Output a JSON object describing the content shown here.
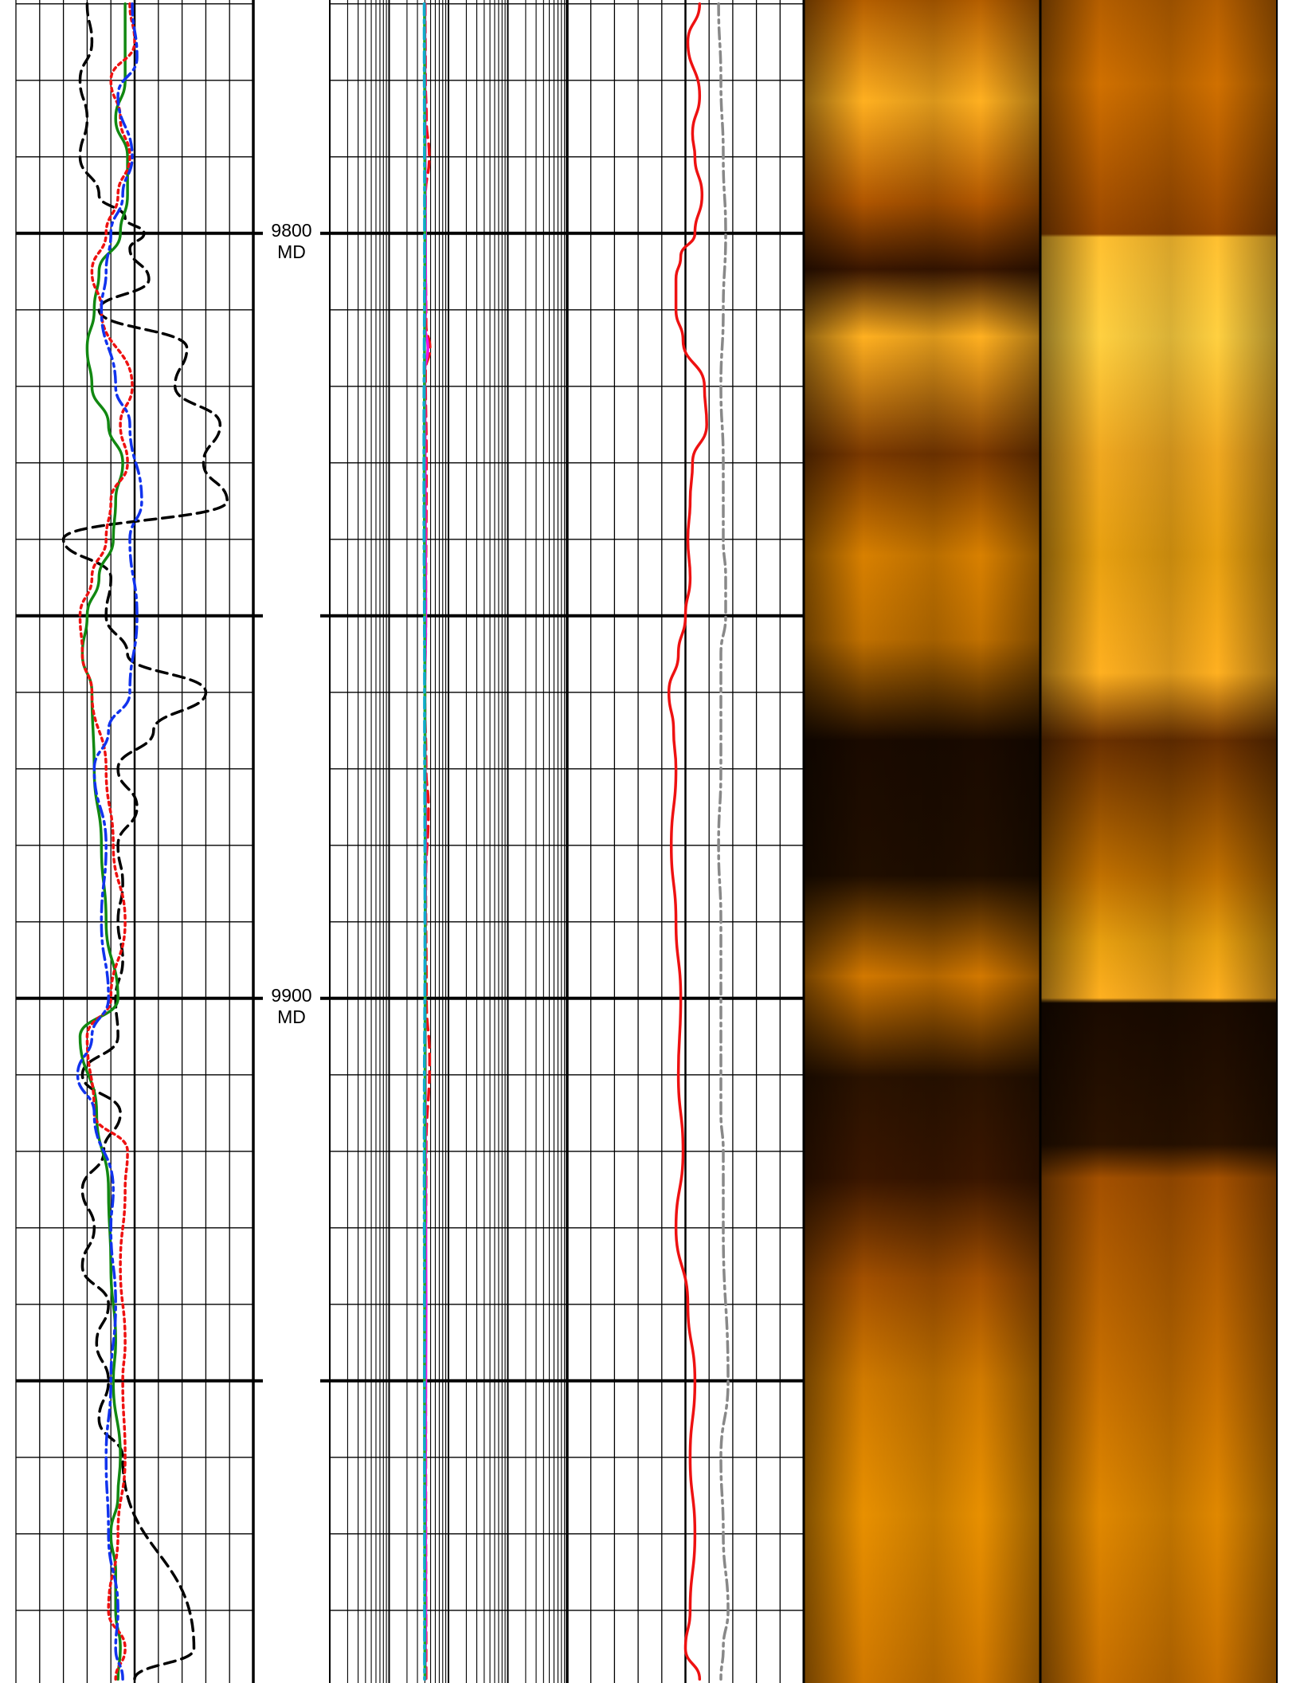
{
  "depth_track": {
    "labels": [
      {
        "depth": 9800,
        "line1": "9800",
        "line2": "MD"
      },
      {
        "depth": 9900,
        "line1": "9900",
        "line2": "MD"
      }
    ]
  },
  "chart_data": {
    "type": "line",
    "title": "",
    "y_axis": {
      "quantity": "MD",
      "range": [
        9769.5,
        9989.5
      ],
      "inverted": true,
      "major_step": 50,
      "minor_step": 10
    },
    "tracks": [
      {
        "name": "track-1",
        "scale": "linear",
        "x_range": [
          0,
          10
        ],
        "grid": true,
        "series": [
          {
            "id": "black-dashed",
            "color": "#000000",
            "dash": "dashed",
            "x": [
              3.0,
              3.2,
              2.7,
              3.0,
              2.7,
              3.5,
              4.6,
              5.4,
              4.8,
              5.6,
              3.5,
              7.2,
              6.7,
              8.6,
              7.9,
              8.9,
              2.0,
              4.0,
              3.8,
              4.7,
              8.0,
              5.8,
              4.3,
              5.1,
              4.3,
              4.5,
              4.3,
              4.5,
              4.2,
              4.3,
              2.8,
              4.4,
              3.7,
              2.8,
              3.3,
              2.8,
              3.9,
              3.4,
              3.9,
              3.5,
              4.5,
              7.5,
              5.0
            ],
            "depth": [
              9770,
              9775,
              9780,
              9785,
              9790,
              9795,
              9798,
              9800,
              9802,
              9806,
              9810,
              9815,
              9820,
              9825,
              9830,
              9835,
              9840,
              9845,
              9850,
              9855,
              9860,
              9865,
              9870,
              9875,
              9880,
              9885,
              9890,
              9895,
              9900,
              9905,
              9910,
              9915,
              9920,
              9925,
              9930,
              9935,
              9940,
              9945,
              9950,
              9955,
              9960,
              9985,
              9989
            ]
          },
          {
            "id": "green-solid",
            "color": "#118811",
            "dash": "solid",
            "x": [
              4.6,
              4.6,
              4.2,
              4.7,
              4.7,
              4.4,
              3.5,
              3.3,
              3.0,
              3.2,
              3.9,
              4.5,
              4.2,
              4.1,
              3.5,
              3.0,
              2.8,
              3.2,
              3.3,
              3.6,
              3.8,
              4.3,
              2.7,
              3.4,
              3.9,
              4.0,
              4.2,
              4.1,
              4.4,
              4.3,
              4.0,
              4.2,
              4.2,
              4.4,
              4.3
            ],
            "depth": [
              9770,
              9780,
              9785,
              9790,
              9795,
              9800,
              9805,
              9810,
              9815,
              9820,
              9825,
              9830,
              9835,
              9840,
              9845,
              9850,
              9855,
              9860,
              9870,
              9880,
              9890,
              9900,
              9905,
              9915,
              9925,
              9935,
              9945,
              9950,
              9960,
              9965,
              9970,
              9975,
              9980,
              9985,
              9989
            ]
          },
          {
            "id": "red-dotted",
            "color": "#ee1111",
            "dash": "dotted",
            "x": [
              4.8,
              5.0,
              4.0,
              4.4,
              4.8,
              4.3,
              3.8,
              3.2,
              3.6,
              4.9,
              4.4,
              4.7,
              4.0,
              3.8,
              3.2,
              2.7,
              2.8,
              3.2,
              3.8,
              4.1,
              4.6,
              4.0,
              3.0,
              3.3,
              4.7,
              4.6,
              4.4,
              4.6,
              4.5,
              4.6,
              4.3,
              3.9,
              4.6,
              4.2
            ],
            "depth": [
              9770,
              9775,
              9780,
              9785,
              9790,
              9795,
              9800,
              9805,
              9810,
              9820,
              9825,
              9830,
              9835,
              9840,
              9845,
              9850,
              9855,
              9860,
              9870,
              9880,
              9890,
              9900,
              9905,
              9915,
              9920,
              9925,
              9935,
              9945,
              9950,
              9960,
              9970,
              9980,
              9985,
              9989
            ]
          },
          {
            "id": "blue-dashdot",
            "color": "#1133ee",
            "dash": "dashdot",
            "x": [
              4.9,
              5.1,
              4.3,
              4.9,
              4.5,
              4.0,
              3.8,
              3.6,
              4.2,
              4.8,
              5.3,
              4.8,
              5.1,
              4.8,
              3.9,
              3.3,
              3.8,
              3.6,
              3.9,
              3.2,
              2.6,
              3.3,
              4.1,
              4.0,
              4.2,
              4.0,
              3.8,
              3.9,
              4.3,
              4.2,
              4.5
            ],
            "depth": [
              9770,
              9777,
              9782,
              9790,
              9795,
              9800,
              9805,
              9810,
              9820,
              9825,
              9835,
              9840,
              9850,
              9860,
              9865,
              9870,
              9880,
              9890,
              9900,
              9905,
              9910,
              9915,
              9925,
              9930,
              9940,
              9950,
              9960,
              9970,
              9980,
              9985,
              9989
            ]
          }
        ]
      },
      {
        "name": "track-2",
        "scale": "log",
        "x_range": [
          0.2,
          2000
        ],
        "grid": true,
        "series": [
          {
            "id": "red-dashed",
            "color": "#ee1111",
            "dash": "dashed",
            "x": [
              8.1,
              8.2,
              8.5,
              9.5,
              8.2,
              8.1,
              8.4,
              9.8,
              8.2,
              8.5,
              8.3,
              8.0,
              8.4,
              9.2,
              8.3,
              8.5,
              9.6,
              8.4,
              8.2,
              8.3,
              8.4
            ],
            "depth": [
              9770,
              9780,
              9785,
              9790,
              9795,
              9800,
              9812,
              9815,
              9818,
              9830,
              9850,
              9860,
              9870,
              9875,
              9885,
              9900,
              9908,
              9920,
              9940,
              9960,
              9989
            ]
          },
          {
            "id": "magenta-solid",
            "color": "#ee11ee",
            "dash": "solid",
            "x": [
              8.0,
              8.1,
              8.3,
              8.0,
              9.0,
              8.0,
              8.3,
              8.0,
              8.3,
              8.1,
              8.2,
              8.4,
              8.2,
              8.3,
              8.1
            ],
            "depth": [
              9770,
              9790,
              9810,
              9812,
              9815,
              9818,
              9850,
              9860,
              9880,
              9900,
              9920,
              9940,
              9960,
              9980,
              9989
            ]
          },
          {
            "id": "green-solid",
            "color": "#22aa22",
            "dash": "solid",
            "x": [
              7.9,
              8.0,
              7.8,
              8.0,
              8.1,
              8.0,
              7.9,
              8.0
            ],
            "depth": [
              9770,
              9800,
              9830,
              9860,
              9890,
              9920,
              9950,
              9989
            ]
          },
          {
            "id": "cyan-dashdot",
            "color": "#11aacc",
            "dash": "dashdot",
            "x": [
              7.8,
              7.9,
              7.7,
              7.9,
              8.0,
              7.8,
              7.9,
              7.9
            ],
            "depth": [
              9770,
              9800,
              9830,
              9860,
              9890,
              9920,
              9950,
              9989
            ]
          }
        ]
      },
      {
        "name": "track-3",
        "scale": "linear",
        "x_range": [
          0,
          10
        ],
        "grid": true,
        "series": [
          {
            "id": "red-solid",
            "color": "#ee1111",
            "dash": "solid",
            "x": [
              5.6,
              5.1,
              5.6,
              5.3,
              5.4,
              5.7,
              5.4,
              4.8,
              4.6,
              4.6,
              4.9,
              5.8,
              5.9,
              5.3,
              5.2,
              5.1,
              5.2,
              5.0,
              4.7,
              4.3,
              4.5,
              4.6,
              4.4,
              4.6,
              4.8,
              4.7,
              4.9,
              4.6,
              5.1,
              5.4,
              5.2,
              5.4,
              5.2,
              5.0,
              5.6
            ],
            "depth": [
              9770,
              9775,
              9782,
              9787,
              9790,
              9795,
              9800,
              9803,
              9806,
              9810,
              9814,
              9820,
              9825,
              9830,
              9835,
              9840,
              9845,
              9850,
              9855,
              9860,
              9865,
              9870,
              9880,
              9890,
              9900,
              9910,
              9920,
              9930,
              9940,
              9950,
              9960,
              9970,
              9980,
              9985,
              9989
            ]
          },
          {
            "id": "grey-dashdot",
            "color": "#888888",
            "dash": "dashdot",
            "x": [
              6.4,
              6.5,
              6.6,
              6.7,
              6.6,
              6.5,
              6.6,
              6.6,
              6.7,
              6.7,
              6.5,
              6.5,
              6.4,
              6.5,
              6.5,
              6.5,
              6.6,
              6.6,
              6.8,
              6.5,
              6.6,
              6.8,
              6.6,
              6.5
            ],
            "depth": [
              9770,
              9780,
              9790,
              9800,
              9810,
              9820,
              9830,
              9840,
              9845,
              9850,
              9855,
              9870,
              9880,
              9890,
              9900,
              9915,
              9920,
              9930,
              9950,
              9960,
              9970,
              9980,
              9985,
              9989
            ]
          }
        ]
      },
      {
        "name": "image-track-1",
        "type": "heatmap",
        "palette": [
          "#140800",
          "#7a3600",
          "#c86a00",
          "#ffc030"
        ]
      },
      {
        "name": "image-track-2",
        "type": "heatmap",
        "palette": [
          "#140800",
          "#7a3600",
          "#c86a00",
          "#ffc030"
        ]
      }
    ]
  }
}
